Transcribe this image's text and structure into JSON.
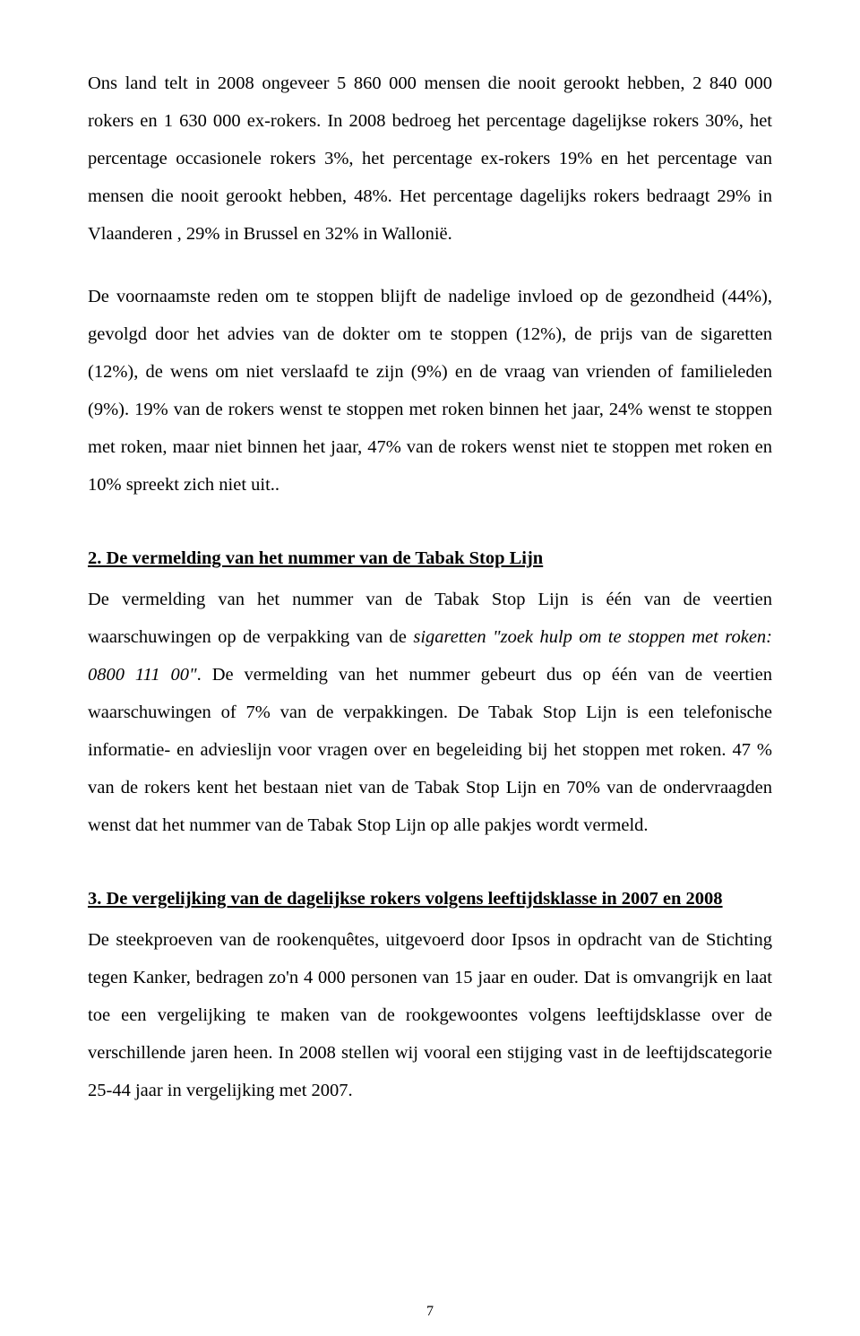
{
  "para1": "Ons land telt in 2008 ongeveer 5 860 000 mensen die nooit gerookt hebben, 2 840 000 rokers en 1 630 000 ex-rokers. In 2008 bedroeg het percentage dagelijkse rokers 30%, het percentage occasionele rokers 3%, het percentage ex-rokers 19% en het percentage van mensen die nooit gerookt hebben, 48%. Het percentage dagelijks rokers bedraagt 29% in Vlaanderen , 29% in Brussel en 32% in Wallonië.",
  "para2": "De voornaamste reden om te stoppen blijft de nadelige invloed op de gezondheid (44%), gevolgd door het advies van de dokter om te stoppen (12%), de prijs van de sigaretten (12%), de wens om niet verslaafd te zijn (9%) en de vraag van vrienden of familieleden (9%). 19% van de rokers wenst te stoppen met roken binnen het jaar, 24% wenst te stoppen met roken, maar niet binnen het jaar, 47% van de rokers wenst niet te stoppen met roken en 10% spreekt zich niet uit..",
  "section2": {
    "heading": "2. De vermelding van het nummer van de Tabak Stop Lijn",
    "body_pre": "De vermelding van het nummer van de Tabak Stop Lijn is één van de veertien waarschuwingen op de verpakking van de ",
    "body_italic": "sigaretten \"zoek hulp om te stoppen met roken: 0800 111 00\"",
    "body_post": ". De vermelding van het nummer gebeurt dus op één van de veertien waarschuwingen of 7% van de verpakkingen. De Tabak Stop Lijn is een telefonische informatie- en advieslijn voor vragen over en begeleiding bij het stoppen met roken. 47 % van de rokers kent het bestaan niet van de Tabak Stop Lijn en 70% van de ondervraagden wenst dat het nummer van de Tabak Stop Lijn op alle pakjes wordt vermeld."
  },
  "section3": {
    "heading": "3. De vergelijking van de dagelijkse rokers volgens leeftijdsklasse in 2007 en 2008",
    "body": "De steekproeven van de rookenquêtes, uitgevoerd door Ipsos in opdracht van de Stichting tegen Kanker, bedragen zo'n 4 000 personen van 15 jaar en ouder. Dat is omvangrijk en laat toe een vergelijking te maken van de rookgewoontes volgens leeftijdsklasse over de verschillende jaren heen. In 2008 stellen wij vooral een stijging vast in de leeftijdscategorie 25-44 jaar in vergelijking met 2007."
  },
  "page_number": "7"
}
